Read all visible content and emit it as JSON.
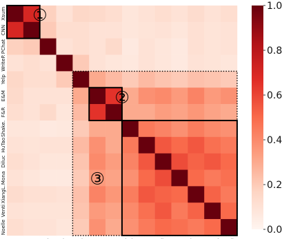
{
  "chart_data": {
    "type": "heatmap",
    "title": "",
    "xlabel": "",
    "ylabel": "",
    "row_labels": [
      "Xsum",
      "CNN",
      "PChat",
      "WriteP.",
      "Yelp",
      "E&M",
      "F&R",
      "Shake.",
      "HuTao",
      "Diluc",
      "Mona",
      "XiangL.",
      "Venti",
      "Noelle"
    ],
    "col_labels": [
      "Xsum",
      "CNN",
      "PChat",
      "WriteP.",
      "Yelp",
      "E&M",
      "F&R",
      "Shake.",
      "HuTao",
      "Diluc",
      "Mona",
      "XiangL.",
      "Venti",
      "Noelle"
    ],
    "values": [
      [
        1.0,
        0.7,
        0.18,
        0.1,
        0.15,
        0.14,
        0.12,
        0.08,
        0.1,
        0.12,
        0.1,
        0.13,
        0.1,
        0.12
      ],
      [
        0.7,
        1.0,
        0.2,
        0.12,
        0.12,
        0.1,
        0.1,
        0.08,
        0.09,
        0.1,
        0.08,
        0.11,
        0.09,
        0.1
      ],
      [
        0.18,
        0.2,
        1.0,
        0.1,
        0.12,
        0.1,
        0.14,
        0.06,
        0.1,
        0.08,
        0.06,
        0.11,
        0.09,
        0.1
      ],
      [
        0.1,
        0.12,
        0.1,
        1.0,
        0.2,
        0.1,
        0.08,
        0.07,
        0.1,
        0.08,
        0.06,
        0.1,
        0.09,
        0.08
      ],
      [
        0.15,
        0.12,
        0.12,
        0.2,
        1.0,
        0.3,
        0.25,
        0.2,
        0.25,
        0.22,
        0.2,
        0.23,
        0.22,
        0.2
      ],
      [
        0.14,
        0.1,
        0.1,
        0.1,
        0.3,
        1.0,
        0.65,
        0.3,
        0.38,
        0.4,
        0.35,
        0.42,
        0.35,
        0.38
      ],
      [
        0.12,
        0.1,
        0.14,
        0.08,
        0.25,
        0.65,
        1.0,
        0.3,
        0.3,
        0.34,
        0.32,
        0.36,
        0.32,
        0.3
      ],
      [
        0.08,
        0.08,
        0.06,
        0.07,
        0.2,
        0.3,
        0.3,
        1.0,
        0.45,
        0.42,
        0.38,
        0.44,
        0.4,
        0.38
      ],
      [
        0.1,
        0.09,
        0.1,
        0.1,
        0.25,
        0.38,
        0.3,
        0.45,
        1.0,
        0.55,
        0.5,
        0.55,
        0.48,
        0.45
      ],
      [
        0.12,
        0.1,
        0.08,
        0.08,
        0.22,
        0.4,
        0.34,
        0.42,
        0.55,
        1.0,
        0.58,
        0.52,
        0.55,
        0.5
      ],
      [
        0.1,
        0.08,
        0.06,
        0.06,
        0.2,
        0.35,
        0.32,
        0.38,
        0.5,
        0.58,
        1.0,
        0.5,
        0.45,
        0.48
      ],
      [
        0.13,
        0.11,
        0.11,
        0.1,
        0.23,
        0.42,
        0.36,
        0.44,
        0.55,
        0.52,
        0.5,
        1.0,
        0.52,
        0.45
      ],
      [
        0.1,
        0.09,
        0.09,
        0.09,
        0.22,
        0.35,
        0.32,
        0.4,
        0.48,
        0.55,
        0.45,
        0.52,
        1.0,
        0.5
      ],
      [
        0.12,
        0.1,
        0.1,
        0.08,
        0.2,
        0.38,
        0.3,
        0.38,
        0.45,
        0.5,
        0.48,
        0.45,
        0.5,
        1.0
      ]
    ],
    "vmin": 0.0,
    "vmax": 1.0,
    "colorbar_ticks": [
      "0.0",
      "0.2",
      "0.4",
      "0.6",
      "0.8",
      "1.0"
    ],
    "colormap": [
      "#fff5f0",
      "#fdd5c4",
      "#fc9f81",
      "#f96a4b",
      "#e02c26",
      "#b01217",
      "#67000d"
    ],
    "blocks": [
      {
        "label": "①",
        "start": 0,
        "end": 1,
        "style": "solid"
      },
      {
        "label": "②",
        "start": 5,
        "end": 6,
        "style": "solid"
      },
      {
        "label": "③",
        "start": 7,
        "end": 13,
        "style": "solid"
      },
      {
        "label": "",
        "start": 4,
        "end": 13,
        "style": "dotted"
      }
    ]
  }
}
